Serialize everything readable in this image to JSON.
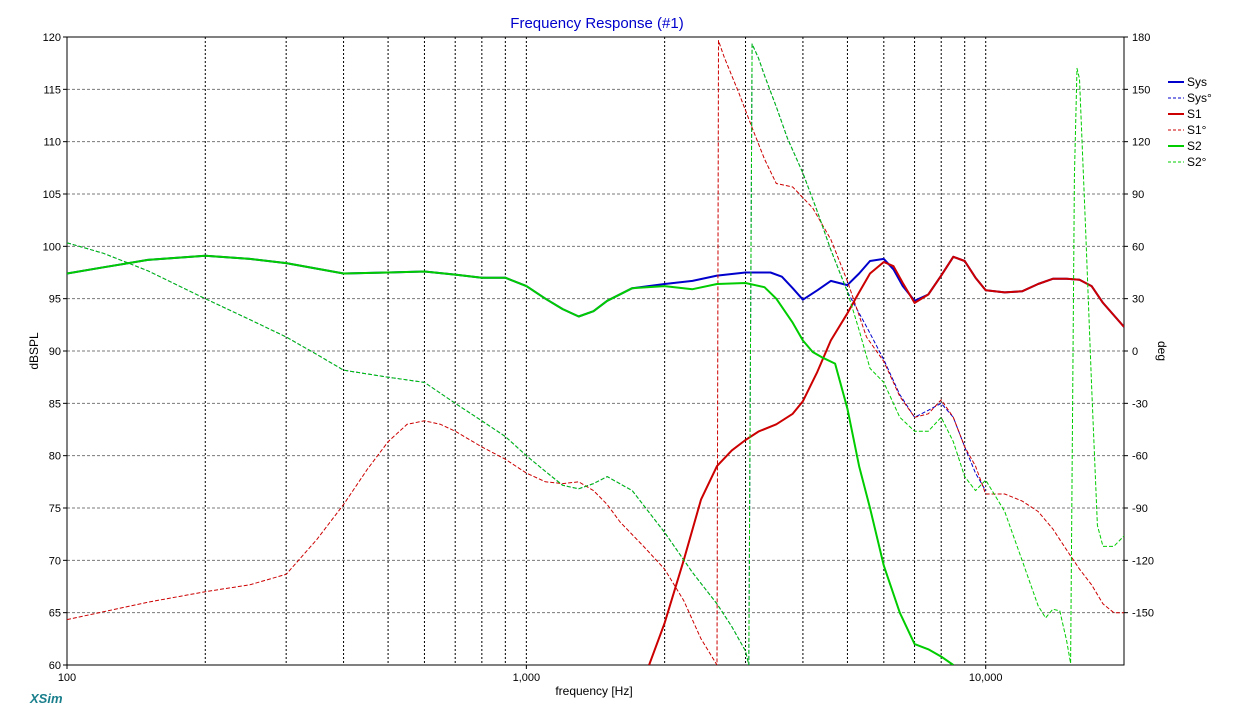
{
  "app": {
    "brand": "XSim"
  },
  "chart_data": {
    "type": "line",
    "title": "Frequency Response (#1)",
    "xlabel": "frequency [Hz]",
    "ylabel": "dBSPL",
    "y2label": "deg",
    "xscale": "log",
    "xlim": [
      100,
      20000
    ],
    "ylim": [
      60,
      120
    ],
    "y2lim": [
      -180,
      180
    ],
    "grid": true,
    "legend_position": "right",
    "xticks": [
      {
        "value": 100,
        "label": "100"
      },
      {
        "value": 1000,
        "label": "1,000"
      },
      {
        "value": 10000,
        "label": "10,000"
      }
    ],
    "yticks": [
      "60",
      "65",
      "70",
      "75",
      "80",
      "85",
      "90",
      "95",
      "100",
      "105",
      "110",
      "115",
      "120"
    ],
    "y2ticks": [
      "-150",
      "-120",
      "-90",
      "-60",
      "-30",
      "0",
      "30",
      "60",
      "90",
      "120",
      "150",
      "180"
    ],
    "series": [
      {
        "name": "Sys",
        "axis": "left",
        "color": "#0000cc",
        "style": "solid",
        "width": 2,
        "x": [
          100,
          120,
          150,
          200,
          250,
          300,
          400,
          500,
          600,
          700,
          800,
          900,
          1000,
          1100,
          1200,
          1300,
          1400,
          1500,
          1700,
          2000,
          2300,
          2600,
          3000,
          3400,
          3600,
          3800,
          4000,
          4300,
          4600,
          5000,
          5300,
          5600,
          6000,
          6300,
          6600,
          7000,
          7500,
          8000,
          8500,
          9000,
          9500,
          10000,
          11000,
          12000,
          13000,
          14000,
          15000,
          16000,
          17000,
          18000,
          20000
        ],
        "y": [
          97.4,
          98,
          98.7,
          99.1,
          98.8,
          98.4,
          97.4,
          97.5,
          97.6,
          97.3,
          97,
          97,
          96.2,
          95,
          94,
          93.3,
          93.8,
          94.8,
          96,
          96.4,
          96.7,
          97.2,
          97.5,
          97.5,
          97.1,
          96,
          94.9,
          95.8,
          96.7,
          96.3,
          97.4,
          98.6,
          98.8,
          97.8,
          96.2,
          94.8,
          95.4,
          97.2,
          99,
          98.6,
          97,
          95.8,
          95.6,
          95.7,
          96.4,
          96.9,
          96.9,
          96.8,
          96.2,
          94.6,
          92.3
        ]
      },
      {
        "name": "Sys°",
        "axis": "right",
        "color": "#0000cc",
        "style": "dashed",
        "width": 1,
        "x": [
          100,
          120,
          150,
          200,
          250,
          300,
          350,
          400,
          500,
          600,
          700,
          800,
          900,
          1000,
          1100,
          1200,
          1300,
          1400,
          1500,
          1700,
          2000,
          2300,
          2600,
          2800,
          3000,
          3050,
          3100,
          3200,
          3300,
          3500,
          3700,
          4000,
          4300,
          4600,
          5000,
          5500,
          6000,
          6500,
          7000,
          7500,
          8000,
          8500,
          9000,
          9500,
          10000
        ],
        "y": [
          62,
          56,
          46,
          30,
          18,
          8,
          -2,
          -11,
          -15,
          -18,
          -30,
          -40,
          -49,
          -60,
          -69,
          -77,
          -79,
          -76,
          -72,
          -80,
          -104,
          -127,
          -145,
          -158,
          -172,
          -180,
          176,
          168,
          158,
          140,
          122,
          102,
          80,
          58,
          34,
          14,
          -5,
          -25,
          -38,
          -34,
          -30,
          -38,
          -55,
          -70,
          -80
        ]
      },
      {
        "name": "S1",
        "axis": "left",
        "color": "#cc0000",
        "style": "solid",
        "width": 2,
        "x": [
          1850,
          2000,
          2200,
          2400,
          2600,
          2800,
          3000,
          3200,
          3500,
          3800,
          4000,
          4300,
          4600,
          5000,
          5300,
          5600,
          6000,
          6300,
          6600,
          7000,
          7500,
          8000,
          8500,
          9000,
          9500,
          10000,
          11000,
          12000,
          13000,
          14000,
          15000,
          16000,
          17000,
          18000,
          20000
        ],
        "y": [
          60,
          64,
          70,
          75.8,
          79,
          80.5,
          81.5,
          82.3,
          83,
          84,
          85.2,
          88,
          91,
          93.6,
          95.6,
          97.4,
          98.5,
          98.1,
          96.5,
          94.6,
          95.4,
          97.2,
          99,
          98.6,
          97,
          95.8,
          95.6,
          95.7,
          96.4,
          96.9,
          96.9,
          96.8,
          96.2,
          94.6,
          92.3
        ]
      },
      {
        "name": "S1°",
        "axis": "right",
        "color": "#cc0000",
        "style": "dashed",
        "width": 1,
        "x": [
          100,
          150,
          200,
          250,
          300,
          350,
          400,
          450,
          500,
          550,
          600,
          650,
          700,
          800,
          900,
          1000,
          1100,
          1200,
          1300,
          1400,
          1500,
          1600,
          1800,
          2000,
          2200,
          2400,
          2600,
          2620,
          2650,
          2700,
          2900,
          3100,
          3300,
          3500,
          3800,
          4200,
          4600,
          5000,
          5500,
          6000,
          6500,
          7000,
          7500,
          8000,
          8500,
          9000,
          9500,
          10000,
          11000,
          12000,
          13000,
          14000,
          15000,
          16000,
          17000,
          18000,
          19000,
          20000
        ],
        "y": [
          -154,
          -144,
          -138,
          -134,
          -128,
          -108,
          -88,
          -68,
          -52,
          -42,
          -40,
          -42,
          -46,
          -55,
          -62,
          -70,
          -75,
          -76,
          -75,
          -80,
          -88,
          -98,
          -112,
          -125,
          -143,
          -165,
          -180,
          178,
          174,
          168,
          148,
          128,
          110,
          96,
          94,
          82,
          64,
          40,
          8,
          -6,
          -26,
          -38,
          -36,
          -28,
          -38,
          -55,
          -66,
          -82,
          -82,
          -86,
          -92,
          -102,
          -114,
          -125,
          -134,
          -145,
          -150,
          -150
        ]
      },
      {
        "name": "S2",
        "axis": "left",
        "color": "#00cc00",
        "style": "solid",
        "width": 2,
        "x": [
          100,
          120,
          150,
          200,
          250,
          300,
          400,
          500,
          600,
          700,
          800,
          900,
          1000,
          1100,
          1200,
          1300,
          1400,
          1500,
          1700,
          2000,
          2300,
          2600,
          3000,
          3300,
          3500,
          3800,
          4000,
          4200,
          4400,
          4700,
          5000,
          5300,
          5600,
          6000,
          6500,
          7000,
          7500,
          8000,
          8500
        ],
        "y": [
          97.4,
          98,
          98.7,
          99.1,
          98.8,
          98.4,
          97.4,
          97.5,
          97.6,
          97.3,
          97,
          97,
          96.2,
          95,
          94,
          93.3,
          93.8,
          94.8,
          96,
          96.2,
          95.9,
          96.4,
          96.5,
          96.1,
          95,
          92.7,
          91,
          89.9,
          89.4,
          88.8,
          84.5,
          79,
          75,
          69.5,
          65,
          62,
          61.5,
          60.8,
          60
        ]
      },
      {
        "name": "S2°",
        "axis": "right",
        "color": "#00cc00",
        "style": "dashed",
        "width": 1,
        "x": [
          100,
          120,
          150,
          200,
          250,
          300,
          350,
          400,
          500,
          600,
          700,
          800,
          900,
          1000,
          1100,
          1200,
          1300,
          1400,
          1500,
          1700,
          2000,
          2300,
          2600,
          2800,
          3000,
          3050,
          3100,
          3200,
          3300,
          3500,
          3700,
          4000,
          4300,
          4600,
          5000,
          5300,
          5600,
          6000,
          6500,
          7000,
          7500,
          8000,
          8500,
          9000,
          9500,
          10000,
          11000,
          12000,
          13000,
          13500,
          14000,
          14500,
          15000,
          15300,
          15600,
          15800,
          16000,
          16500,
          17000,
          17500,
          18000,
          19000,
          20000
        ],
        "y": [
          62,
          56,
          46,
          30,
          18,
          8,
          -2,
          -11,
          -15,
          -18,
          -30,
          -40,
          -49,
          -60,
          -69,
          -77,
          -79,
          -76,
          -72,
          -80,
          -104,
          -127,
          -145,
          -158,
          -172,
          -180,
          176,
          168,
          158,
          140,
          122,
          102,
          80,
          58,
          34,
          12,
          -10,
          -18,
          -38,
          -46,
          -46,
          -38,
          -52,
          -72,
          -80,
          -74,
          -92,
          -120,
          -146,
          -153,
          -148,
          -149,
          -166,
          -179,
          100,
          162,
          156,
          70,
          -20,
          -100,
          -112,
          -112,
          -106
        ]
      }
    ]
  }
}
